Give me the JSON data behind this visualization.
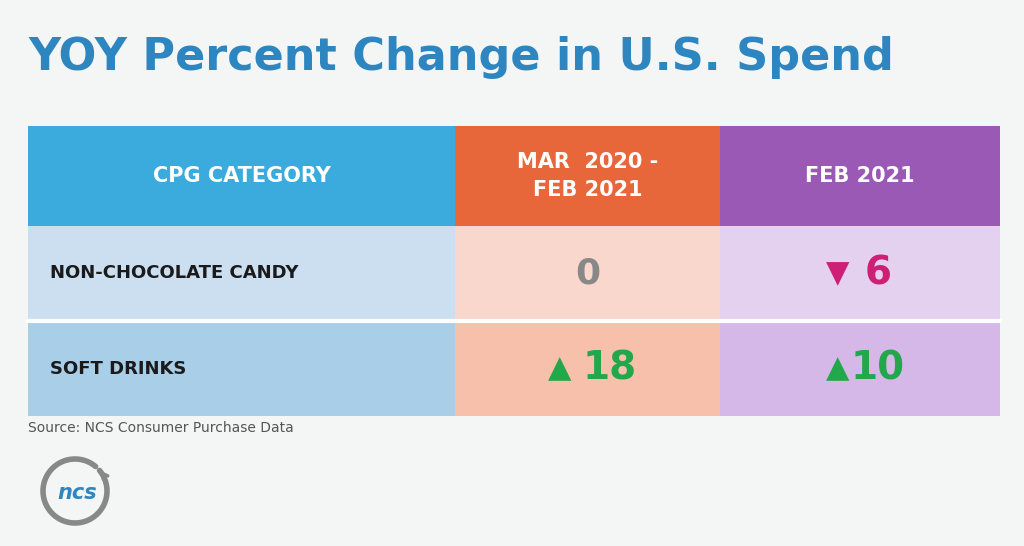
{
  "title": "YOY Percent Change in U.S. Spend",
  "title_color": "#2E86C1",
  "title_fontsize": 32,
  "background_color": "#F4F6F6",
  "header_col1_text": "CPG CATEGORY",
  "header_col2_text": "MAR  2020 -\nFEB 2021",
  "header_col3_text": "FEB 2021",
  "header_col1_bg": "#3AABDC",
  "header_col2_bg": "#E8673A",
  "header_col3_bg": "#9B59B6",
  "header_text_color": "#FFFFFF",
  "row1_col1_text": "NON-CHOCOLATE CANDY",
  "row1_col2_text": "0",
  "row1_col2_value_color": "#888888",
  "row1_col3_arrow": "▼",
  "row1_col3_value": "6",
  "row1_col3_arrow_color": "#CC1F75",
  "row1_col3_value_color": "#CC1F75",
  "row2_col1_text": "SOFT DRINKS",
  "row2_col2_arrow": "▲",
  "row2_col2_value": "18",
  "row2_col2_arrow_color": "#22A84B",
  "row2_col2_value_color": "#22A84B",
  "row2_col3_arrow": "▲",
  "row2_col3_value": "10",
  "row2_col3_arrow_color": "#22A84B",
  "row2_col3_value_color": "#22A84B",
  "row1_col1_bg": "#CCDFF0",
  "row1_col2_bg": "#FAD7CC",
  "row1_col3_bg": "#E4D0EF",
  "row2_col1_bg": "#A8CEE8",
  "row2_col2_bg": "#F7C0AA",
  "row2_col3_bg": "#D5B8E8",
  "source_text": "Source: NCS Consumer Purchase Data",
  "source_fontsize": 10,
  "source_color": "#555555",
  "ncs_circle_color": "#888888",
  "ncs_text_color": "#2E86C1",
  "ncs_text": "ncs"
}
